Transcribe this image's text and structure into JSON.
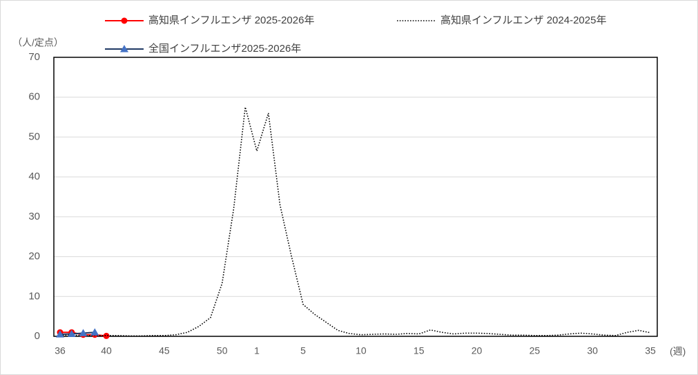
{
  "chart_data": {
    "type": "line",
    "y_label": "（人/定点）",
    "x_label": "(週)",
    "categories": [
      "36",
      null,
      null,
      null,
      "40",
      null,
      null,
      null,
      null,
      "45",
      null,
      null,
      null,
      null,
      "50",
      null,
      null,
      "1",
      null,
      null,
      null,
      "5",
      null,
      null,
      null,
      null,
      "10",
      null,
      null,
      null,
      null,
      "15",
      null,
      null,
      null,
      null,
      "20",
      null,
      null,
      null,
      null,
      "25",
      null,
      null,
      null,
      null,
      "30",
      null,
      null,
      null,
      null,
      "35"
    ],
    "series": [
      {
        "name": "高知県インフルエンザ 2025-2026年",
        "color": "#ff0000",
        "marker": "circle",
        "dash": "solid",
        "values": [
          1.0,
          1.0,
          0.4,
          0.4,
          0.1,
          null,
          null,
          null,
          null,
          null,
          null,
          null,
          null,
          null,
          null,
          null,
          null,
          null,
          null,
          null,
          null,
          null,
          null,
          null,
          null,
          null,
          null,
          null,
          null,
          null,
          null,
          null,
          null,
          null,
          null,
          null,
          null,
          null,
          null,
          null,
          null,
          null,
          null,
          null,
          null,
          null,
          null,
          null,
          null,
          null,
          null,
          null
        ]
      },
      {
        "name": "高知県インフルエンザ 2024-2025年",
        "color": "#000000",
        "marker": "none",
        "dash": "dotted",
        "values": [
          0.3,
          0.3,
          0.2,
          0.2,
          0.2,
          0.2,
          0.1,
          0.1,
          0.2,
          0.2,
          0.4,
          1.0,
          2.5,
          4.7,
          13.3,
          32,
          57.5,
          46.5,
          56,
          33,
          20,
          8,
          5.5,
          3.5,
          1.5,
          0.7,
          0.4,
          0.5,
          0.6,
          0.5,
          0.7,
          0.6,
          1.6,
          1.0,
          0.6,
          0.8,
          0.8,
          0.7,
          0.5,
          0.3,
          0.3,
          0.2,
          0.2,
          0.3,
          0.6,
          0.8,
          0.6,
          0.3,
          0.2,
          1.0,
          1.5,
          0.9
        ]
      },
      {
        "name": "全国インフルエンザ2025-2026年",
        "color": "#1f3864",
        "marker_color": "#4472c4",
        "marker": "triangle",
        "dash": "solid",
        "values": [
          0.5,
          0.6,
          0.8,
          1.0,
          null,
          null,
          null,
          null,
          null,
          null,
          null,
          null,
          null,
          null,
          null,
          null,
          null,
          null,
          null,
          null,
          null,
          null,
          null,
          null,
          null,
          null,
          null,
          null,
          null,
          null,
          null,
          null,
          null,
          null,
          null,
          null,
          null,
          null,
          null,
          null,
          null,
          null,
          null,
          null,
          null,
          null,
          null,
          null,
          null,
          null,
          null,
          null
        ]
      }
    ],
    "ylim": [
      0,
      70
    ],
    "yticks": [
      0,
      10,
      20,
      30,
      40,
      50,
      60,
      70
    ],
    "grid": true
  }
}
